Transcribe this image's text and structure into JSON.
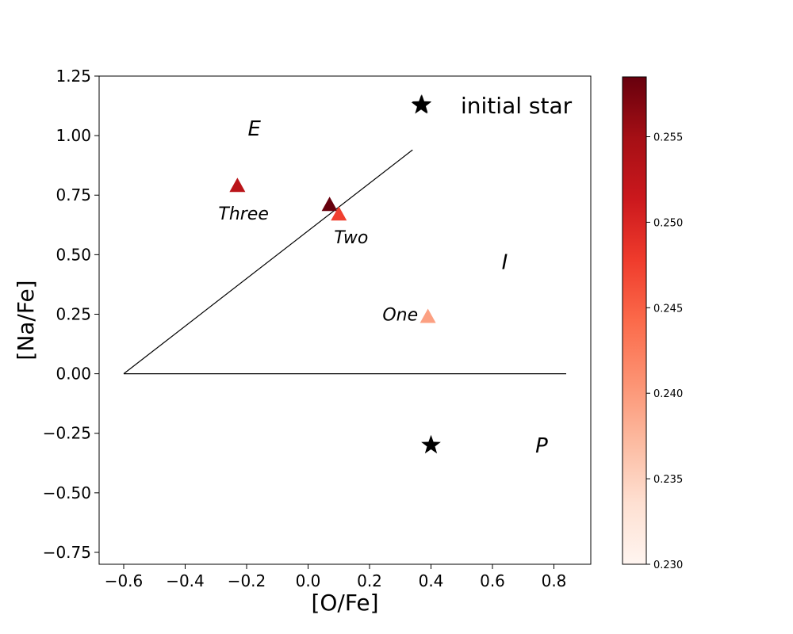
{
  "chart_data": {
    "type": "scatter",
    "xlabel": "[O/Fe]",
    "ylabel": "[Na/Fe]",
    "xlim": [
      -0.68,
      0.92
    ],
    "ylim": [
      -0.8,
      1.25
    ],
    "xticks": [
      -0.6,
      -0.4,
      -0.2,
      0.0,
      0.2,
      0.4,
      0.6,
      0.8
    ],
    "xtick_labels": [
      "−0.6",
      "−0.4",
      "−0.2",
      "0.0",
      "0.2",
      "0.4",
      "0.6",
      "0.8"
    ],
    "yticks": [
      -0.75,
      -0.5,
      -0.25,
      0.0,
      0.25,
      0.5,
      0.75,
      1.0,
      1.25
    ],
    "ytick_labels": [
      "−0.75",
      "−0.50",
      "−0.25",
      "0.00",
      "0.25",
      "0.50",
      "0.75",
      "1.00",
      "1.25"
    ],
    "grid": false,
    "boundary_lines": [
      {
        "x": [
          -0.6,
          0.34
        ],
        "y": [
          0.0,
          0.94
        ]
      },
      {
        "x": [
          -0.6,
          0.84
        ],
        "y": [
          0.0,
          0.0
        ]
      }
    ],
    "region_labels": [
      {
        "text": "E",
        "x": -0.175,
        "y": 1.03
      },
      {
        "text": "I",
        "x": 0.64,
        "y": 0.47
      },
      {
        "text": "P",
        "x": 0.76,
        "y": -0.3
      }
    ],
    "stars": [
      {
        "x": 0.37,
        "y": 1.13
      },
      {
        "x": 0.4,
        "y": -0.3
      }
    ],
    "legend": {
      "label": "initial star",
      "placement": "top-right"
    },
    "triangles": [
      {
        "x": -0.23,
        "y": 0.79,
        "c": 0.253
      },
      {
        "x": 0.07,
        "y": 0.71,
        "c": 0.2585
      },
      {
        "x": 0.1,
        "y": 0.67,
        "c": 0.2475
      },
      {
        "x": 0.39,
        "y": 0.24,
        "c": 0.2395
      }
    ],
    "point_labels": [
      {
        "text": "Three",
        "x": -0.21,
        "y": 0.675
      },
      {
        "text": "Two",
        "x": 0.14,
        "y": 0.575
      },
      {
        "text": "One",
        "x": 0.3,
        "y": 0.25
      }
    ],
    "colorbar": {
      "range": [
        0.23,
        0.2585
      ],
      "ticks": [
        0.23,
        0.235,
        0.24,
        0.245,
        0.25,
        0.255
      ],
      "tick_labels": [
        "0.230",
        "0.235",
        "0.240",
        "0.245",
        "0.250",
        "0.255"
      ],
      "colormap": "Reds",
      "color_stops": [
        "#fff5f0",
        "#fee0d2",
        "#fcbba1",
        "#fc9272",
        "#fb6a4a",
        "#ef3b2c",
        "#cb181d",
        "#a50f15",
        "#67000d"
      ]
    }
  }
}
